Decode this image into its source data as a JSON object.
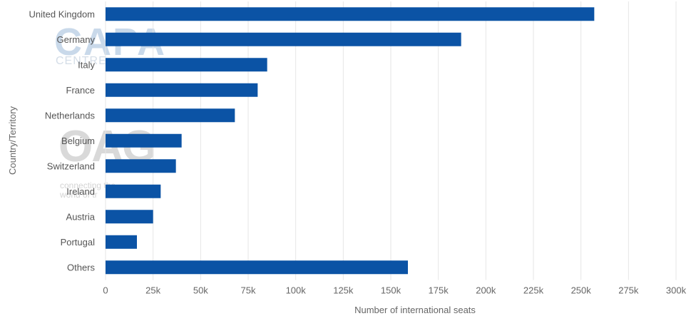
{
  "chart_data": {
    "type": "bar",
    "orientation": "horizontal",
    "categories": [
      "United Kingdom",
      "Germany",
      "Italy",
      "France",
      "Netherlands",
      "Belgium",
      "Switzerland",
      "Ireland",
      "Austria",
      "Portugal",
      "Others"
    ],
    "values": [
      257000,
      187000,
      85000,
      80000,
      68000,
      40000,
      37000,
      29000,
      25000,
      16500,
      159000
    ],
    "xlabel": "Number of international seats",
    "ylabel": "Country/Territory",
    "xlim": [
      0,
      300000
    ],
    "xticks": [
      "0",
      "25k",
      "50k",
      "75k",
      "100k",
      "125k",
      "150k",
      "175k",
      "200k",
      "225k",
      "250k",
      "275k",
      "300k"
    ],
    "grid": true,
    "bar_color": "#0b53a5"
  },
  "watermark": {
    "capa": "CAPA",
    "centre": "CENTRE",
    "oag": "OAG",
    "tagline_1": "connecting the",
    "tagline_2": "world of tr"
  }
}
